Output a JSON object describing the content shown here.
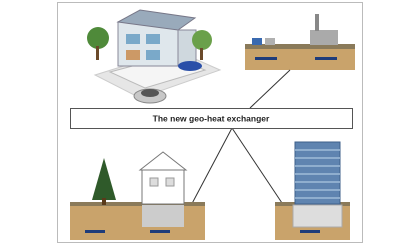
{
  "label": "The new geo-heat exchanger"
}
